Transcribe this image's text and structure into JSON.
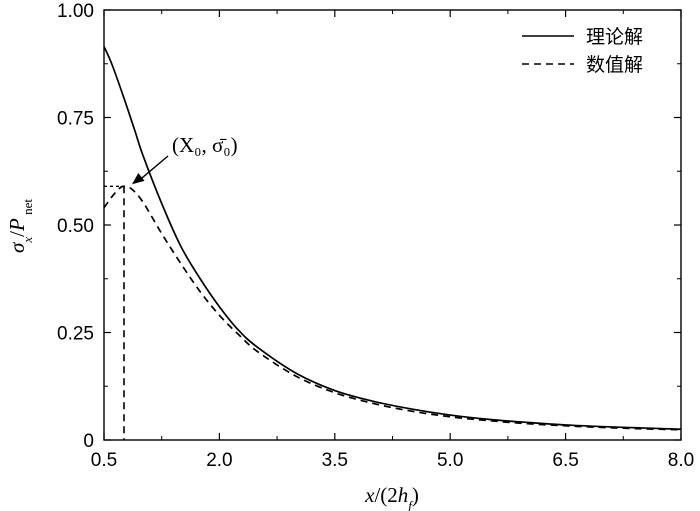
{
  "chart_data": {
    "type": "line",
    "title": "",
    "xlabel": "x/(2h_f)",
    "ylabel": "σx/Pnet",
    "xlim": [
      0.5,
      8.0
    ],
    "ylim": [
      0,
      1.0
    ],
    "x_ticks": [
      "0.5",
      "2.0",
      "3.5",
      "5.0",
      "6.5",
      "8.0"
    ],
    "y_ticks": [
      "0",
      "0.25",
      "0.50",
      "0.75",
      "1.00"
    ],
    "legend_position": "top-right",
    "grid": false,
    "series": [
      {
        "name": "理论解",
        "style": "solid",
        "x": [
          0.5,
          0.6,
          0.75,
          0.9,
          1.0,
          1.25,
          1.5,
          1.75,
          2.0,
          2.25,
          2.5,
          3.0,
          3.5,
          4.0,
          4.5,
          5.0,
          5.5,
          6.0,
          6.5,
          7.0,
          7.5,
          8.0
        ],
        "y": [
          0.915,
          0.875,
          0.8,
          0.72,
          0.665,
          0.55,
          0.45,
          0.375,
          0.31,
          0.255,
          0.215,
          0.155,
          0.115,
          0.09,
          0.072,
          0.058,
          0.048,
          0.041,
          0.035,
          0.031,
          0.028,
          0.025
        ]
      },
      {
        "name": "数值解",
        "style": "dashed",
        "x": [
          0.5,
          0.6,
          0.7,
          0.76,
          0.85,
          1.0,
          1.25,
          1.5,
          1.75,
          2.0,
          2.25,
          2.5,
          3.0,
          3.5,
          4.0,
          4.5,
          5.0,
          5.5,
          6.0,
          6.5,
          7.0,
          7.5,
          8.0
        ],
        "y": [
          0.54,
          0.565,
          0.585,
          0.59,
          0.585,
          0.555,
          0.48,
          0.41,
          0.345,
          0.29,
          0.245,
          0.205,
          0.148,
          0.11,
          0.085,
          0.067,
          0.054,
          0.045,
          0.038,
          0.033,
          0.029,
          0.026,
          0.024
        ]
      }
    ],
    "annotation": {
      "label": "(X₀, σ̄₀)",
      "x": 0.76,
      "y": 0.59
    }
  }
}
